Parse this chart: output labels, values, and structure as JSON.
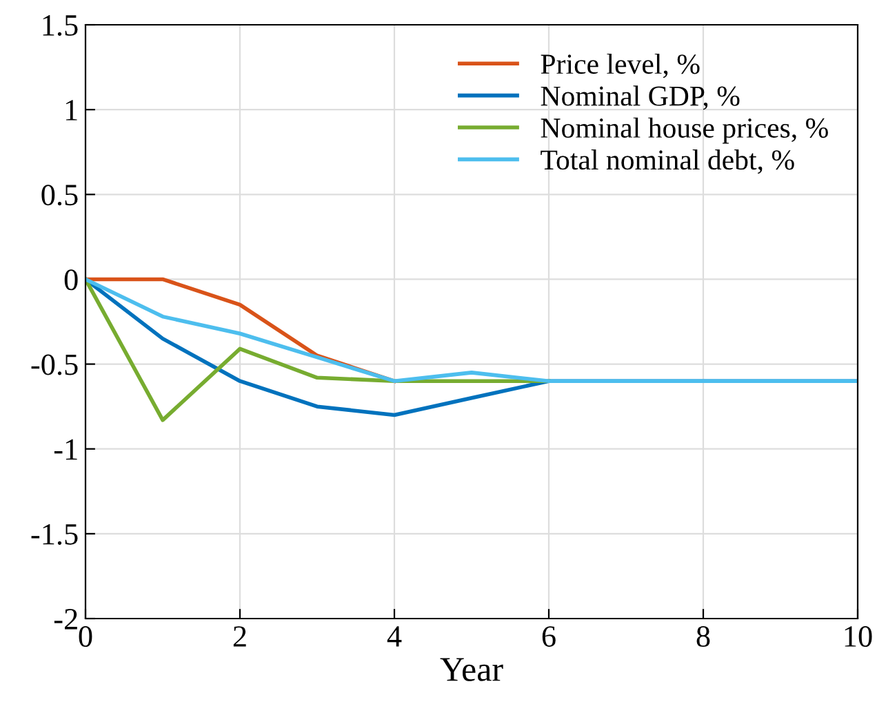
{
  "chart_data": {
    "type": "line",
    "xlabel": "Year",
    "x": [
      0,
      1,
      2,
      3,
      4,
      5,
      6,
      7,
      8,
      9,
      10
    ],
    "series": [
      {
        "name": "Price level, %",
        "color": "#d95319",
        "values": [
          0,
          0,
          -0.15,
          -0.45,
          -0.6,
          null,
          null,
          null,
          null,
          null,
          null
        ]
      },
      {
        "name": "Nominal GDP, %",
        "color": "#0072bd",
        "values": [
          0,
          -0.35,
          -0.6,
          -0.75,
          -0.8,
          -0.7,
          -0.6,
          -0.6,
          -0.6,
          -0.6,
          -0.6
        ]
      },
      {
        "name": "Nominal house prices, %",
        "color": "#77ac30",
        "values": [
          0,
          -0.83,
          -0.41,
          -0.58,
          -0.6,
          -0.6,
          -0.6,
          null,
          null,
          null,
          null
        ]
      },
      {
        "name": "Total nominal debt, %",
        "color": "#4dbeee",
        "values": [
          0,
          -0.22,
          -0.32,
          -0.46,
          -0.6,
          -0.55,
          -0.6,
          -0.6,
          -0.6,
          -0.6,
          -0.6
        ]
      }
    ],
    "xlim": [
      0,
      10
    ],
    "xticks": [
      0,
      2,
      4,
      6,
      8,
      10
    ],
    "ylim": [
      -2,
      1.5
    ],
    "yticks": [
      -2,
      -1.5,
      -1,
      -0.5,
      0,
      0.5,
      1,
      1.5
    ],
    "grid": true,
    "legend": "top right"
  }
}
